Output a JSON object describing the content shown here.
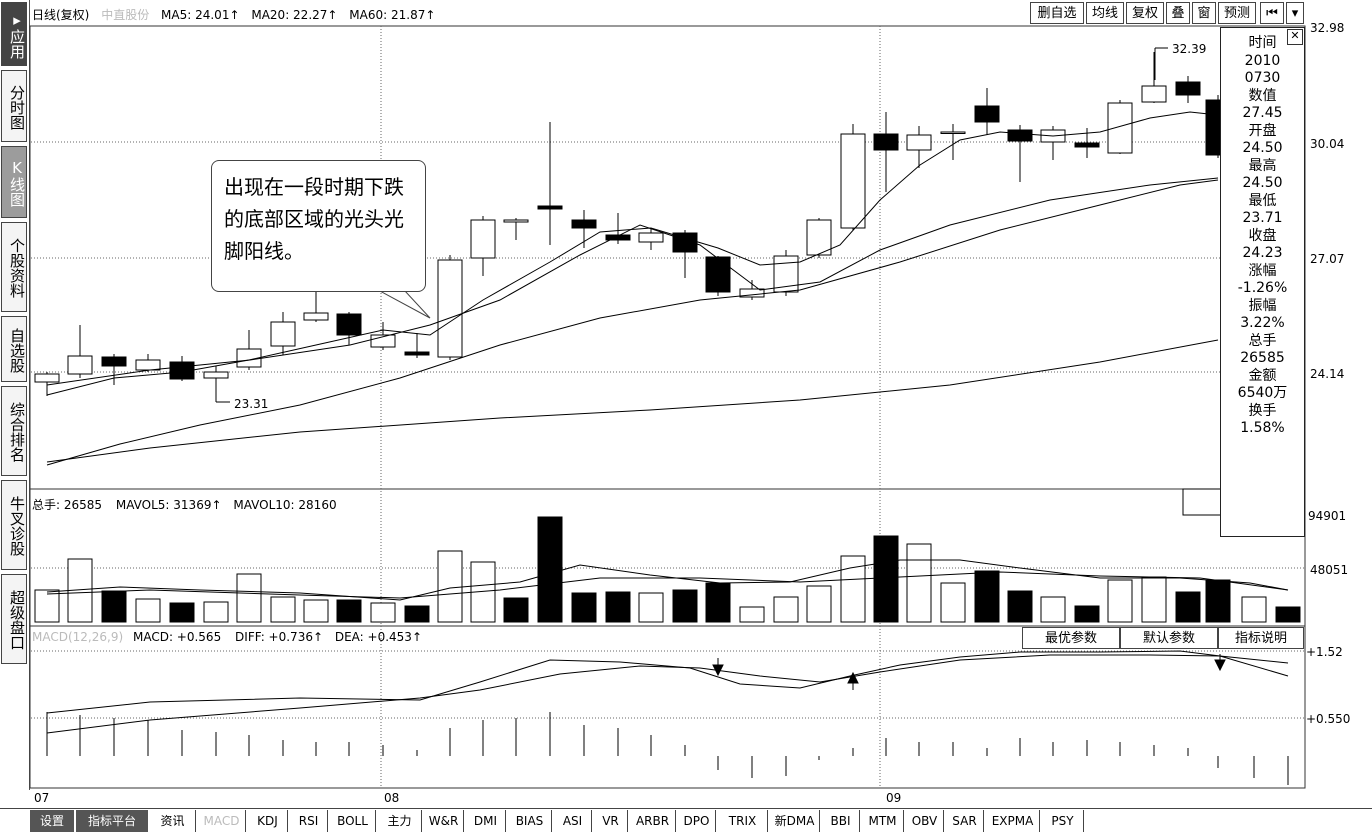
{
  "left_toolbar": [
    "应用",
    "分时图",
    "K线图",
    "个股资料",
    "自选股",
    "综合排名",
    "牛叉诊股",
    "超级盘口"
  ],
  "header": {
    "period": "日线(复权)",
    "stock_name": "中直股份",
    "ma5": "MA5: 24.01",
    "ma20": "MA20: 22.27",
    "ma60": "MA60: 21.87",
    "arrow_up": "↑"
  },
  "top_buttons": [
    "删自选",
    "均线",
    "复权",
    "叠",
    "窗",
    "预测"
  ],
  "price_axis": [
    "32.98",
    "30.04",
    "27.07",
    "24.14"
  ],
  "volume_axis": [
    "94901",
    "48051"
  ],
  "macd_axis": [
    "+1.52",
    "+0.550"
  ],
  "price_annotations": {
    "high": "32.39",
    "low": "23.31"
  },
  "callout_text": "出现在一段时期下跌的底部区域的光头光脚阳线。",
  "infobox": [
    "时间",
    "2010",
    "0730",
    "数值",
    "27.45",
    "开盘",
    "24.50",
    "最高",
    "24.50",
    "最低",
    "23.71",
    "收盘",
    "24.23",
    "涨幅",
    "-1.26%",
    "振幅",
    "3.22%",
    "总手",
    "26585",
    "金额",
    "6540万",
    "换手",
    "1.58%"
  ],
  "volume_header": {
    "total": "总手: 26585",
    "mavol5": "MAVOL5: 31369",
    "mavol10": "MAVOL10: 28160"
  },
  "macd_header": {
    "name": "MACD(12,26,9)",
    "macd": "MACD: +0.565",
    "diff": "DIFF: +0.736",
    "dea": "DEA: +0.453"
  },
  "macd_buttons": [
    "最优参数",
    "默认参数",
    "指标说明"
  ],
  "x_axis": [
    "07",
    "08",
    "09"
  ],
  "bottom_tabs": [
    "设置",
    "指标平台",
    "资讯",
    "MACD",
    "KDJ",
    "RSI",
    "BOLL",
    "主力",
    "W&R",
    "DMI",
    "BIAS",
    "ASI",
    "VR",
    "ARBR",
    "DPO",
    "TRIX",
    "新DMA",
    "BBI",
    "MTM",
    "OBV",
    "SAR",
    "EXPMA",
    "PSY"
  ],
  "colors": {
    "bear": "#000000",
    "bull": "#ffffff",
    "line": "#000000",
    "grid": "#444444"
  }
}
